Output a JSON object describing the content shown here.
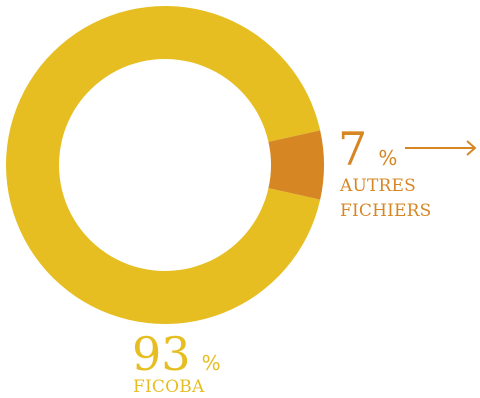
{
  "chart_data": {
    "type": "pie",
    "variant": "donut",
    "categories": [
      "FICOBA",
      "AUTRES FICHIERS"
    ],
    "values": [
      93,
      7
    ],
    "labels": [
      {
        "value": "93",
        "unit": "%",
        "name": "FICOBA"
      },
      {
        "value": "7",
        "unit": "%",
        "name": "AUTRES FICHIERS"
      }
    ],
    "colors": [
      "#E6BE22",
      "#D68724"
    ],
    "title": "",
    "legend": "none"
  },
  "texts": {
    "ficoba_value": "93",
    "ficoba_unit": "%",
    "ficoba_name": "FICOBA",
    "autres_value": "7",
    "autres_unit": "%",
    "autres_name_line1": "AUTRES",
    "autres_name_line2": "FICHIERS"
  },
  "colors": {
    "ficoba": "#E6BE22",
    "autres": "#D68724"
  }
}
